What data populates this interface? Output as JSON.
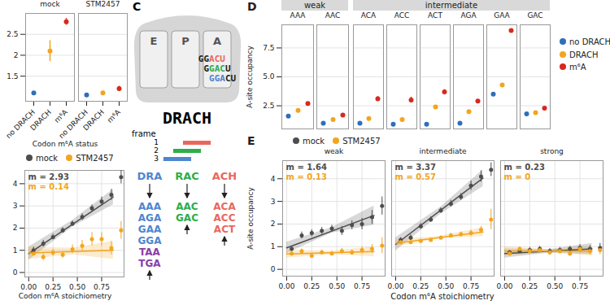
{
  "chart_data": [
    {
      "type": "dot",
      "x_label": "Codon m⁶A status",
      "categories": [
        "no DRACH",
        "DRACH",
        "m⁶A"
      ],
      "colors": [
        "#2F6EBA",
        "#F2A51F",
        "#D62A1E"
      ],
      "ylim": [
        0.9,
        3.0
      ],
      "yticks": [
        1.5,
        2,
        2.5
      ],
      "grid": true,
      "facets": [
        {
          "name": "mock",
          "values": [
            1.1,
            2.1,
            2.8
          ],
          "errors": [
            0.03,
            0.25,
            0.08
          ]
        },
        {
          "name": "STM2457",
          "values": [
            1.05,
            1.1,
            1.2
          ],
          "errors": [
            0.02,
            0.05,
            0.06
          ]
        }
      ]
    },
    {
      "type": "scatter",
      "x_label": "Codon m⁶A stoichiometry",
      "xlim": [
        -0.04,
        0.98
      ],
      "xticks": [
        {
          "value": 0,
          "label": "0.00"
        },
        0.25,
        {
          "value": 0.5,
          "label": "0.50"
        },
        0.75
      ],
      "ylim": [
        -0.2,
        4.6
      ],
      "yticks": [
        0,
        1,
        2,
        3,
        4
      ],
      "grid": true,
      "legend": "top",
      "series": [
        {
          "name": "mock",
          "color": "#4D4D4D",
          "annotation": "m = 2.93",
          "x": [
            0.05,
            0.15,
            0.25,
            0.35,
            0.45,
            0.55,
            0.65,
            0.75,
            0.85,
            0.95
          ],
          "values": [
            1.0,
            1.3,
            1.6,
            1.9,
            2.2,
            2.5,
            2.9,
            3.2,
            3.5,
            4.3
          ],
          "errors": [
            0.15,
            0.15,
            0.12,
            0.12,
            0.12,
            0.15,
            0.15,
            0.2,
            0.25,
            0.3
          ],
          "fit_x": [
            0,
            0.87
          ],
          "fit_y": [
            0.85,
            3.4
          ],
          "band_x": [
            0,
            0.45,
            0.87
          ],
          "band_lower": [
            0.55,
            2.05,
            3.05
          ],
          "band_upper": [
            1.15,
            2.35,
            3.75
          ]
        },
        {
          "name": "STM2457",
          "color": "#F2A51F",
          "annotation": "m = 0.14",
          "x": [
            0.05,
            0.15,
            0.25,
            0.35,
            0.45,
            0.55,
            0.65,
            0.75,
            0.85,
            0.95
          ],
          "values": [
            0.85,
            0.7,
            0.9,
            0.8,
            1.05,
            1.2,
            1.5,
            1.5,
            1.1,
            1.9
          ],
          "errors": [
            0.1,
            0.15,
            0.15,
            0.15,
            0.2,
            0.25,
            0.3,
            0.3,
            0.3,
            0.4
          ],
          "fit_x": [
            0,
            0.87
          ],
          "fit_y": [
            0.88,
            1.0
          ],
          "band_x": [
            0,
            0.45,
            0.87
          ],
          "band_lower": [
            0.6,
            0.8,
            0.6
          ],
          "band_upper": [
            1.16,
            1.1,
            1.4
          ]
        }
      ]
    },
    {
      "type": "dot",
      "title": "D",
      "y_label": "A-site occupancy",
      "categories": [
        "no DRACH",
        "DRACH",
        "m⁶A"
      ],
      "colors": [
        "#2F6EBA",
        "#F2A51F",
        "#D62A1E"
      ],
      "legend": "right",
      "tick_labels": "y",
      "grid": true,
      "ylim": [
        0.5,
        9.5
      ],
      "yticks": [
        2.5,
        {
          "value": 5,
          "label": "5.0"
        },
        7.5
      ],
      "groups": [
        {
          "name": "weak",
          "codons": [
            {
              "name": "AAA",
              "values": [
                1.6,
                2.1,
                2.7
              ],
              "errors": [
                0.05,
                0.06,
                0.12
              ]
            },
            {
              "name": "AAC",
              "values": [
                1.0,
                1.3,
                1.7
              ],
              "errors": [
                0.04,
                0.05,
                0.1
              ]
            }
          ]
        },
        {
          "name": "intermediate",
          "codons": [
            {
              "name": "ACA",
              "values": [
                1.0,
                1.4,
                3.1
              ],
              "errors": [
                0.04,
                0.06,
                0.2
              ]
            },
            {
              "name": "ACC",
              "values": [
                0.9,
                1.3,
                3.0
              ],
              "errors": [
                0.04,
                0.06,
                0.25
              ]
            },
            {
              "name": "ACT",
              "values": [
                0.9,
                2.4,
                3.7
              ],
              "errors": [
                0.04,
                0.1,
                0.2
              ]
            },
            {
              "name": "AGA",
              "values": [
                1.0,
                2.0,
                2.9
              ],
              "errors": [
                0.04,
                0.08,
                0.12
              ]
            },
            {
              "name": "GAA",
              "values": [
                3.5,
                4.3,
                9.0
              ],
              "errors": [
                0.06,
                0.08,
                0.15
              ]
            },
            {
              "name": "GAC",
              "values": [
                1.8,
                1.9,
                2.3
              ],
              "errors": [
                0.04,
                0.05,
                0.1
              ]
            }
          ]
        }
      ]
    },
    {
      "type": "scatter",
      "title": "E",
      "y_label": "A-site occupancy",
      "x_label": "Codon m⁶A stoichiometry",
      "xlim": [
        -0.04,
        0.98
      ],
      "xticks": [
        {
          "value": 0,
          "label": "0.00"
        },
        0.25,
        {
          "value": 0.5,
          "label": "0.50"
        },
        0.75
      ],
      "ylim": [
        -0.3,
        4.8
      ],
      "yticks": [
        0,
        1,
        2,
        3,
        4
      ],
      "grid": true,
      "legend": "top",
      "series": [
        {
          "name": "mock",
          "color": "#4D4D4D"
        },
        {
          "name": "STM2457",
          "color": "#F2A51F"
        }
      ],
      "facets": [
        {
          "name": "weak",
          "series": [
            {
              "name": "mock",
              "annotation": "m = 1.64",
              "x": [
                0.05,
                0.15,
                0.25,
                0.35,
                0.45,
                0.55,
                0.65,
                0.75,
                0.85,
                0.95
              ],
              "values": [
                0.9,
                1.5,
                1.6,
                1.7,
                1.8,
                1.7,
                1.95,
                2.0,
                2.3,
                2.8
              ],
              "errors": [
                0.1,
                0.15,
                0.15,
                0.15,
                0.15,
                0.2,
                0.2,
                0.25,
                0.3,
                0.4
              ],
              "fit_x": [
                0,
                0.87
              ],
              "fit_y": [
                0.95,
                2.38
              ],
              "band_x": [
                0,
                0.45,
                0.87
              ],
              "band_lower": [
                0.7,
                1.6,
                1.95
              ],
              "band_upper": [
                1.2,
                1.85,
                2.8
              ]
            },
            {
              "name": "STM2457",
              "annotation": "m = 0.13",
              "x": [
                0.05,
                0.15,
                0.25,
                0.35,
                0.45,
                0.55,
                0.65,
                0.75,
                0.85,
                0.95
              ],
              "values": [
                0.7,
                0.8,
                0.6,
                0.75,
                0.7,
                0.8,
                0.75,
                0.85,
                0.9,
                1.05
              ],
              "errors": [
                0.08,
                0.1,
                0.1,
                0.1,
                0.1,
                0.12,
                0.12,
                0.15,
                0.2,
                0.35
              ],
              "fit_x": [
                0,
                0.87
              ],
              "fit_y": [
                0.68,
                0.79
              ],
              "band_x": [
                0,
                0.45,
                0.87
              ],
              "band_lower": [
                0.5,
                0.65,
                0.55
              ],
              "band_upper": [
                0.85,
                0.8,
                1.0
              ]
            }
          ]
        },
        {
          "name": "intermediate",
          "series": [
            {
              "name": "mock",
              "annotation": "m = 3.37",
              "x": [
                0.05,
                0.15,
                0.25,
                0.35,
                0.45,
                0.55,
                0.65,
                0.75,
                0.85,
                0.95
              ],
              "values": [
                1.3,
                1.4,
                1.9,
                2.2,
                2.6,
                2.9,
                3.2,
                3.7,
                4.1,
                4.4
              ],
              "errors": [
                0.1,
                0.12,
                0.12,
                0.12,
                0.12,
                0.15,
                0.15,
                0.2,
                0.25,
                0.3
              ],
              "fit_x": [
                0,
                0.87
              ],
              "fit_y": [
                1.1,
                4.03
              ],
              "band_x": [
                0,
                0.45,
                0.87
              ],
              "band_lower": [
                0.8,
                2.45,
                3.65
              ],
              "band_upper": [
                1.4,
                2.75,
                4.4
              ]
            },
            {
              "name": "STM2457",
              "annotation": "m = 0.57",
              "x": [
                0.05,
                0.15,
                0.25,
                0.35,
                0.45,
                0.55,
                0.65,
                0.75,
                0.85,
                0.95
              ],
              "values": [
                1.2,
                1.2,
                1.25,
                1.3,
                1.4,
                1.5,
                1.55,
                1.6,
                1.75,
                2.2
              ],
              "errors": [
                0.06,
                0.06,
                0.06,
                0.08,
                0.08,
                0.1,
                0.1,
                0.12,
                0.15,
                0.45
              ],
              "fit_x": [
                0,
                0.87
              ],
              "fit_y": [
                1.15,
                1.65
              ],
              "band_x": [
                0,
                0.45,
                0.87
              ],
              "band_lower": [
                1.0,
                1.35,
                1.45
              ],
              "band_upper": [
                1.3,
                1.47,
                1.85
              ]
            }
          ]
        },
        {
          "name": "strong",
          "series": [
            {
              "name": "mock",
              "annotation": "m = 0.23",
              "x": [
                0.05,
                0.15,
                0.25,
                0.35,
                0.45,
                0.55,
                0.65,
                0.75,
                0.85,
                0.95
              ],
              "values": [
                0.75,
                0.8,
                0.85,
                0.9,
                0.8,
                0.85,
                0.9,
                0.95,
                0.9,
                0.95
              ],
              "errors": [
                0.08,
                0.1,
                0.12,
                0.12,
                0.12,
                0.12,
                0.12,
                0.15,
                0.15,
                0.2
              ],
              "fit_x": [
                0,
                0.87
              ],
              "fit_y": [
                0.7,
                0.9
              ],
              "band_x": [
                0,
                0.45,
                0.87
              ],
              "band_lower": [
                0.5,
                0.72,
                0.65
              ],
              "band_upper": [
                0.9,
                0.88,
                1.15
              ]
            },
            {
              "name": "STM2457",
              "annotation": "m = 0",
              "x": [
                0.05,
                0.15,
                0.25,
                0.35,
                0.45,
                0.55,
                0.65,
                0.75,
                0.85,
                0.95
              ],
              "values": [
                0.7,
                0.9,
                0.8,
                0.85,
                0.75,
                0.8,
                0.7,
                0.9,
                0.8,
                0.85
              ],
              "errors": [
                0.08,
                0.1,
                0.12,
                0.12,
                0.12,
                0.12,
                0.12,
                0.15,
                0.15,
                0.2
              ],
              "fit_x": [
                0,
                0.87
              ],
              "fit_y": [
                0.8,
                0.8
              ],
              "band_x": [
                0,
                0.45,
                0.87
              ],
              "band_lower": [
                0.6,
                0.73,
                0.6
              ],
              "band_upper": [
                1.0,
                0.87,
                1.0
              ]
            }
          ]
        }
      ]
    }
  ],
  "diagram": {
    "label": "C",
    "sites": [
      "E",
      "P",
      "A"
    ],
    "site_rows": [
      [
        {
          "text": "GG"
        },
        {
          "text": "ACU",
          "color": "#E8685E"
        }
      ],
      [
        {
          "text": "G"
        },
        {
          "text": "GAC",
          "color": "#2DAE4A"
        },
        {
          "text": "U"
        }
      ],
      [
        {
          "text": "GGA",
          "color": "#4F86CF"
        },
        {
          "text": "CU"
        }
      ]
    ],
    "motif": "DRACH",
    "frame_label": "frame",
    "frames": [
      {
        "frame": "1",
        "text": "ACH",
        "color": "#E8685E",
        "codons": [
          {
            "text": "ACA"
          },
          {
            "text": "ACC"
          },
          {
            "text": "ACT",
            "marked": true
          }
        ]
      },
      {
        "frame": "2",
        "text": "RAC",
        "color": "#2DAE4A",
        "codons": [
          {
            "text": "AAC"
          },
          {
            "text": "GAC",
            "marked": true
          }
        ]
      },
      {
        "frame": "3",
        "text": "DRA",
        "color": "#4F86CF",
        "codons": [
          {
            "text": "AAA"
          },
          {
            "text": "AGA"
          },
          {
            "text": "GAA"
          },
          {
            "text": "GGA"
          },
          {
            "text": "TAA",
            "color": "#8B3FA8"
          },
          {
            "text": "TGA",
            "color": "#8B3FA8",
            "marked": true
          }
        ]
      }
    ]
  }
}
